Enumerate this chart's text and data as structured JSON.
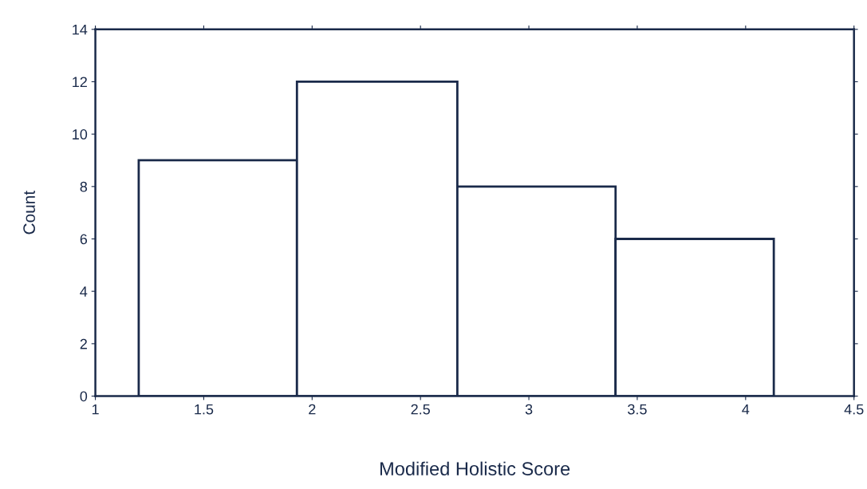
{
  "chart_data": {
    "type": "histogram",
    "xlabel": "Modified Holistic Score",
    "ylabel": "Count",
    "bins": [
      1.2,
      1.93,
      2.67,
      3.4,
      4.13
    ],
    "values": [
      9,
      12,
      8,
      6
    ],
    "color": "#ffffff",
    "xlim": [
      1,
      4.5
    ],
    "xticks": [
      1,
      1.5,
      2,
      2.5,
      3,
      3.5,
      4,
      4.5
    ],
    "ylim": [
      0,
      14
    ],
    "yticks": [
      0,
      2,
      4,
      6,
      8,
      10,
      12,
      14
    ],
    "grid": false
  }
}
